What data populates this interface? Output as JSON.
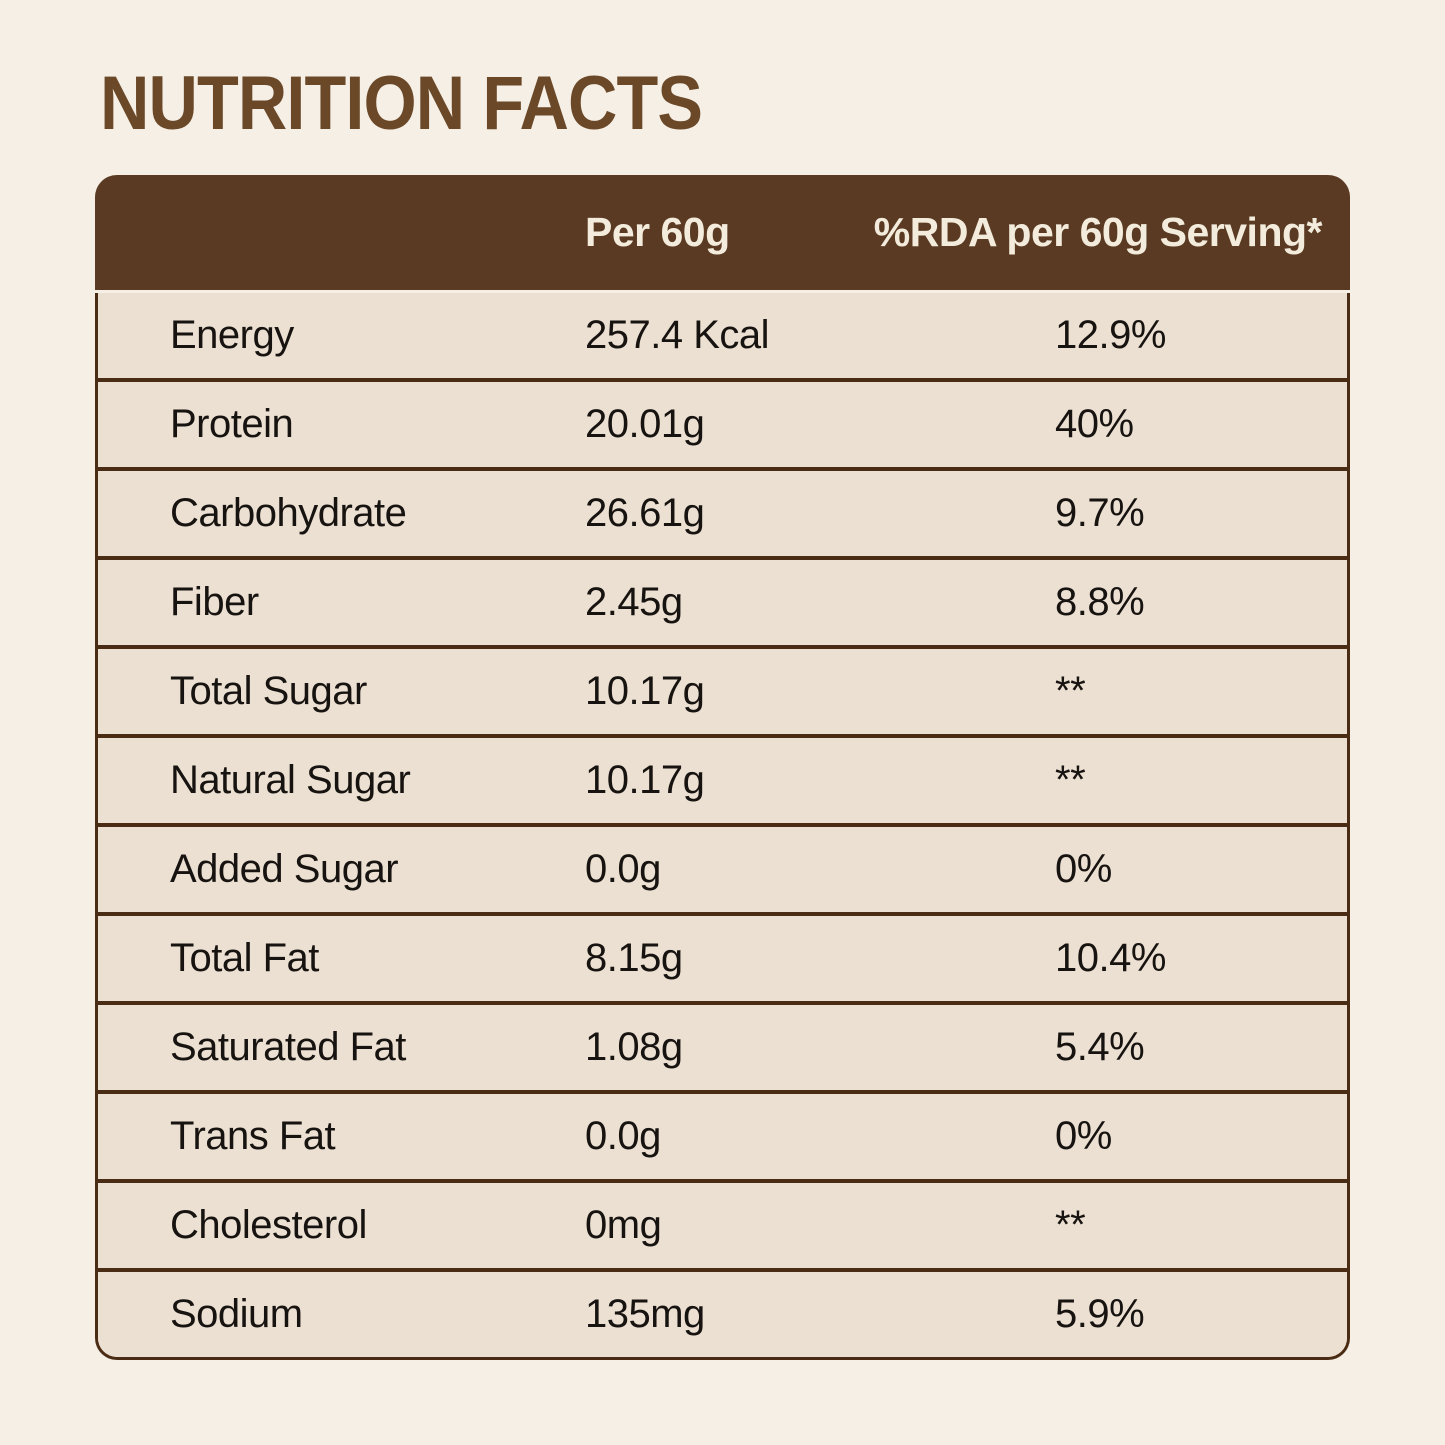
{
  "title": "NUTRITION FACTS",
  "table": {
    "header": {
      "per": "Per 60g",
      "rda": "%RDA per 60g Serving*"
    },
    "rows": [
      {
        "label": "Energy",
        "value": "257.4 Kcal",
        "rda": "12.9%"
      },
      {
        "label": "Protein",
        "value": "20.01g",
        "rda": "40%"
      },
      {
        "label": "Carbohydrate",
        "value": "26.61g",
        "rda": "9.7%"
      },
      {
        "label": "Fiber",
        "value": "2.45g",
        "rda": "8.8%"
      },
      {
        "label": "Total Sugar",
        "value": "10.17g",
        "rda": "**"
      },
      {
        "label": "Natural Sugar",
        "value": "10.17g",
        "rda": "**"
      },
      {
        "label": "Added Sugar",
        "value": "0.0g",
        "rda": "0%"
      },
      {
        "label": "Total Fat",
        "value": "8.15g",
        "rda": "10.4%"
      },
      {
        "label": "Saturated Fat",
        "value": "1.08g",
        "rda": "5.4%"
      },
      {
        "label": "Trans Fat",
        "value": "0.0g",
        "rda": "0%"
      },
      {
        "label": "Cholesterol",
        "value": "0mg",
        "rda": "**"
      },
      {
        "label": "Sodium",
        "value": "135mg",
        "rda": "5.9%"
      }
    ]
  },
  "colors": {
    "page_background": "#f5efe6",
    "title_brown": "#6b4827",
    "header_brown": "#5a3a22",
    "header_text": "#f3ecdc",
    "row_beige": "#ece0d2",
    "border_brown": "#4a2c14",
    "row_text": "#171310"
  }
}
